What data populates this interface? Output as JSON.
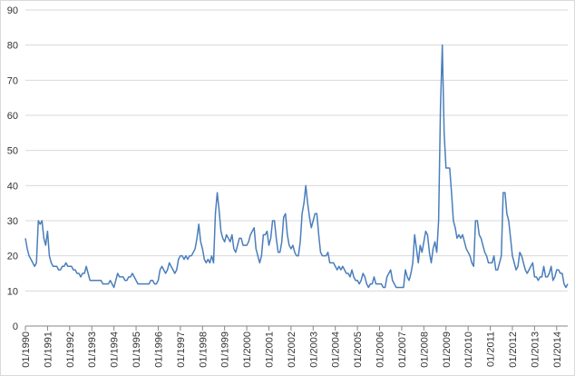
{
  "chart_data": {
    "type": "line",
    "color": "#4a7ebb",
    "grid": true,
    "ylim": [
      0,
      90
    ],
    "yticks": [
      0,
      10,
      20,
      30,
      40,
      50,
      60,
      70,
      80,
      90
    ],
    "xlim": [
      "1990-01",
      "2014-07"
    ],
    "xticks": [
      {
        "value": "1990-01",
        "label": "01/1990"
      },
      {
        "value": "1991-01",
        "label": "01/1991"
      },
      {
        "value": "1992-01",
        "label": "01/1992"
      },
      {
        "value": "1993-01",
        "label": "01/1993"
      },
      {
        "value": "1994-01",
        "label": "01/1994"
      },
      {
        "value": "1995-01",
        "label": "01/1995"
      },
      {
        "value": "1996-01",
        "label": "01/1996"
      },
      {
        "value": "1997-01",
        "label": "01/1997"
      },
      {
        "value": "1998-01",
        "label": "01/1998"
      },
      {
        "value": "1999-01",
        "label": "01/1999"
      },
      {
        "value": "2000-01",
        "label": "01/2000"
      },
      {
        "value": "2001-01",
        "label": "01/2001"
      },
      {
        "value": "2002-01",
        "label": "01/2002"
      },
      {
        "value": "2003-01",
        "label": "01/2003"
      },
      {
        "value": "2004-01",
        "label": "01/2004"
      },
      {
        "value": "2005-01",
        "label": "01/2005"
      },
      {
        "value": "2006-01",
        "label": "01/2006"
      },
      {
        "value": "2007-01",
        "label": "01/2007"
      },
      {
        "value": "2008-01",
        "label": "01/2008"
      },
      {
        "value": "2009-01",
        "label": "01/2009"
      },
      {
        "value": "2010-01",
        "label": "01/2010"
      },
      {
        "value": "2011-01",
        "label": "01/2011"
      },
      {
        "value": "2012-01",
        "label": "01/2012"
      },
      {
        "value": "2013-01",
        "label": "01/2013"
      },
      {
        "value": "2014-01",
        "label": "01/2014"
      }
    ],
    "x": [
      "1990-01",
      "1990-02",
      "1990-03",
      "1990-04",
      "1990-05",
      "1990-06",
      "1990-07",
      "1990-08",
      "1990-09",
      "1990-10",
      "1990-11",
      "1990-12",
      "1991-01",
      "1991-02",
      "1991-03",
      "1991-04",
      "1991-05",
      "1991-06",
      "1991-07",
      "1991-08",
      "1991-09",
      "1991-10",
      "1991-11",
      "1991-12",
      "1992-01",
      "1992-02",
      "1992-03",
      "1992-04",
      "1992-05",
      "1992-06",
      "1992-07",
      "1992-08",
      "1992-09",
      "1992-10",
      "1992-11",
      "1992-12",
      "1993-01",
      "1993-02",
      "1993-03",
      "1993-04",
      "1993-05",
      "1993-06",
      "1993-07",
      "1993-08",
      "1993-09",
      "1993-10",
      "1993-11",
      "1993-12",
      "1994-01",
      "1994-02",
      "1994-03",
      "1994-04",
      "1994-05",
      "1994-06",
      "1994-07",
      "1994-08",
      "1994-09",
      "1994-10",
      "1994-11",
      "1994-12",
      "1995-01",
      "1995-02",
      "1995-03",
      "1995-04",
      "1995-05",
      "1995-06",
      "1995-07",
      "1995-08",
      "1995-09",
      "1995-10",
      "1995-11",
      "1995-12",
      "1996-01",
      "1996-02",
      "1996-03",
      "1996-04",
      "1996-05",
      "1996-06",
      "1996-07",
      "1996-08",
      "1996-09",
      "1996-10",
      "1996-11",
      "1996-12",
      "1997-01",
      "1997-02",
      "1997-03",
      "1997-04",
      "1997-05",
      "1997-06",
      "1997-07",
      "1997-08",
      "1997-09",
      "1997-10",
      "1997-11",
      "1997-12",
      "1998-01",
      "1998-02",
      "1998-03",
      "1998-04",
      "1998-05",
      "1998-06",
      "1998-07",
      "1998-08",
      "1998-09",
      "1998-10",
      "1998-11",
      "1998-12",
      "1999-01",
      "1999-02",
      "1999-03",
      "1999-04",
      "1999-05",
      "1999-06",
      "1999-07",
      "1999-08",
      "1999-09",
      "1999-10",
      "1999-11",
      "1999-12",
      "2000-01",
      "2000-02",
      "2000-03",
      "2000-04",
      "2000-05",
      "2000-06",
      "2000-07",
      "2000-08",
      "2000-09",
      "2000-10",
      "2000-11",
      "2000-12",
      "2001-01",
      "2001-02",
      "2001-03",
      "2001-04",
      "2001-05",
      "2001-06",
      "2001-07",
      "2001-08",
      "2001-09",
      "2001-10",
      "2001-11",
      "2001-12",
      "2002-01",
      "2002-02",
      "2002-03",
      "2002-04",
      "2002-05",
      "2002-06",
      "2002-07",
      "2002-08",
      "2002-09",
      "2002-10",
      "2002-11",
      "2002-12",
      "2003-01",
      "2003-02",
      "2003-03",
      "2003-04",
      "2003-05",
      "2003-06",
      "2003-07",
      "2003-08",
      "2003-09",
      "2003-10",
      "2003-11",
      "2003-12",
      "2004-01",
      "2004-02",
      "2004-03",
      "2004-04",
      "2004-05",
      "2004-06",
      "2004-07",
      "2004-08",
      "2004-09",
      "2004-10",
      "2004-11",
      "2004-12",
      "2005-01",
      "2005-02",
      "2005-03",
      "2005-04",
      "2005-05",
      "2005-06",
      "2005-07",
      "2005-08",
      "2005-09",
      "2005-10",
      "2005-11",
      "2005-12",
      "2006-01",
      "2006-02",
      "2006-03",
      "2006-04",
      "2006-05",
      "2006-06",
      "2006-07",
      "2006-08",
      "2006-09",
      "2006-10",
      "2006-11",
      "2006-12",
      "2007-01",
      "2007-02",
      "2007-03",
      "2007-04",
      "2007-05",
      "2007-06",
      "2007-07",
      "2007-08",
      "2007-09",
      "2007-10",
      "2007-11",
      "2007-12",
      "2008-01",
      "2008-02",
      "2008-03",
      "2008-04",
      "2008-05",
      "2008-06",
      "2008-07",
      "2008-08",
      "2008-09",
      "2008-10",
      "2008-11",
      "2008-12",
      "2009-01",
      "2009-02",
      "2009-03",
      "2009-04",
      "2009-05",
      "2009-06",
      "2009-07",
      "2009-08",
      "2009-09",
      "2009-10",
      "2009-11",
      "2009-12",
      "2010-01",
      "2010-02",
      "2010-03",
      "2010-04",
      "2010-05",
      "2010-06",
      "2010-07",
      "2010-08",
      "2010-09",
      "2010-10",
      "2010-11",
      "2010-12",
      "2011-01",
      "2011-02",
      "2011-03",
      "2011-04",
      "2011-05",
      "2011-06",
      "2011-07",
      "2011-08",
      "2011-09",
      "2011-10",
      "2011-11",
      "2011-12",
      "2012-01",
      "2012-02",
      "2012-03",
      "2012-04",
      "2012-05",
      "2012-06",
      "2012-07",
      "2012-08",
      "2012-09",
      "2012-10",
      "2012-11",
      "2012-12",
      "2013-01",
      "2013-02",
      "2013-03",
      "2013-04",
      "2013-05",
      "2013-06",
      "2013-07",
      "2013-08",
      "2013-09",
      "2013-10",
      "2013-11",
      "2013-12",
      "2014-01",
      "2014-02",
      "2014-03",
      "2014-04",
      "2014-05",
      "2014-06",
      "2014-07"
    ],
    "values": [
      25,
      22,
      20,
      19,
      18,
      17,
      18,
      30,
      29,
      30,
      25,
      23,
      27,
      20,
      18,
      17,
      17,
      17,
      16,
      16,
      17,
      17,
      18,
      17,
      17,
      17,
      16,
      16,
      15,
      15,
      14,
      15,
      15,
      17,
      15,
      13,
      13,
      13,
      13,
      13,
      13,
      13,
      12,
      12,
      12,
      12,
      13,
      12,
      11,
      13,
      15,
      14,
      14,
      14,
      13,
      13,
      14,
      14,
      15,
      14,
      13,
      12,
      12,
      12,
      12,
      12,
      12,
      12,
      13,
      13,
      12,
      12,
      13,
      16,
      17,
      16,
      15,
      16,
      18,
      17,
      16,
      15,
      16,
      19,
      20,
      20,
      19,
      20,
      19,
      20,
      20,
      21,
      22,
      25,
      29,
      24,
      22,
      19,
      18,
      19,
      18,
      20,
      18,
      32,
      38,
      33,
      27,
      25,
      24,
      26,
      25,
      24,
      26,
      22,
      21,
      23,
      25,
      25,
      23,
      23,
      23,
      24,
      26,
      27,
      28,
      22,
      20,
      18,
      20,
      26,
      26,
      27,
      23,
      25,
      30,
      30,
      25,
      21,
      21,
      24,
      31,
      32,
      26,
      23,
      22,
      23,
      21,
      20,
      20,
      24,
      32,
      35,
      40,
      35,
      31,
      28,
      30,
      32,
      32,
      26,
      21,
      20,
      20,
      20,
      21,
      18,
      18,
      18,
      17,
      16,
      17,
      16,
      17,
      16,
      15,
      15,
      14,
      16,
      14,
      13,
      13,
      12,
      13,
      15,
      14,
      12,
      11,
      12,
      12,
      14,
      12,
      12,
      12,
      12,
      11,
      11,
      14,
      15,
      16,
      13,
      12,
      11,
      11,
      11,
      11,
      11,
      16,
      14,
      13,
      15,
      18,
      26,
      22,
      18,
      23,
      21,
      24,
      27,
      26,
      21,
      18,
      22,
      24,
      21,
      30,
      62,
      80,
      55,
      45,
      45,
      45,
      38,
      30,
      28,
      25,
      26,
      25,
      26,
      24,
      22,
      21,
      20,
      18,
      17,
      30,
      30,
      26,
      25,
      23,
      21,
      20,
      18,
      18,
      18,
      20,
      16,
      16,
      18,
      20,
      38,
      38,
      32,
      30,
      25,
      20,
      18,
      16,
      17,
      21,
      20,
      18,
      16,
      15,
      16,
      17,
      18,
      14,
      14,
      13,
      14,
      14,
      17,
      14,
      14,
      15,
      17,
      13,
      14,
      16,
      16,
      15,
      15,
      12,
      11,
      12
    ]
  }
}
